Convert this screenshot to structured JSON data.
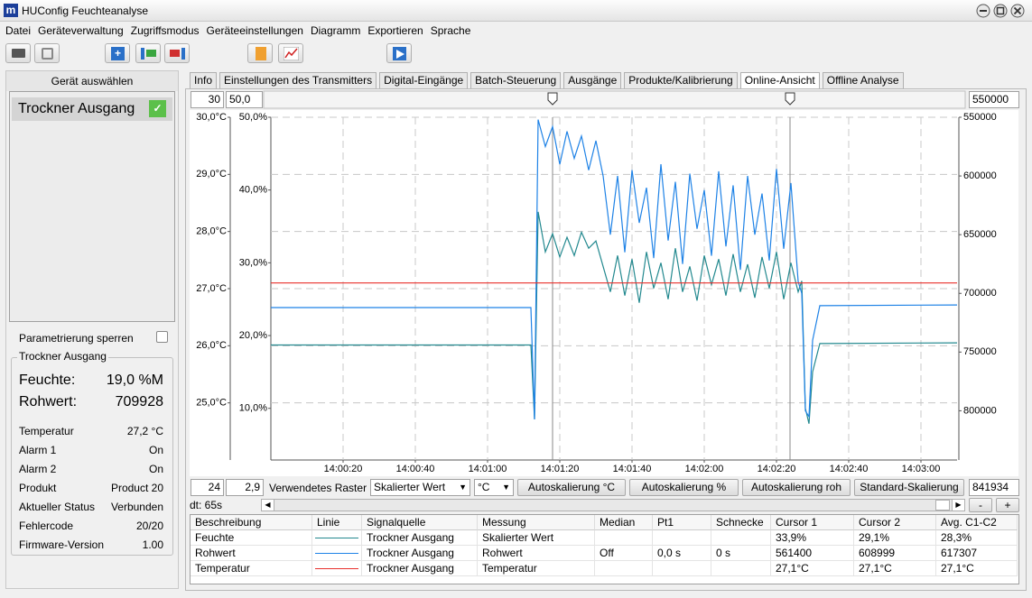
{
  "window": {
    "title": "HUConfig Feuchteanalyse"
  },
  "menu": [
    "Datei",
    "Geräteverwaltung",
    "Zugriffsmodus",
    "Geräteeinstellungen",
    "Diagramm",
    "Exportieren",
    "Sprache"
  ],
  "sidebar": {
    "header": "Gerät auswählen",
    "devices": [
      "Trockner Ausgang"
    ],
    "lock_label": "Parametrierung sperren",
    "group_title": "Trockner Ausgang",
    "readings": [
      {
        "label": "Feuchte:",
        "value": "19,0 %M"
      },
      {
        "label": "Rohwert:",
        "value": "709928"
      }
    ],
    "info": [
      [
        "Temperatur",
        "27,2 °C"
      ],
      [
        "Alarm 1",
        "On"
      ],
      [
        "Alarm 2",
        "On"
      ],
      [
        "Produkt",
        "Product 20"
      ],
      [
        "Aktueller Status",
        "Verbunden"
      ],
      [
        "Fehlercode",
        "20/20"
      ],
      [
        "Firmware-Version",
        "1.00"
      ]
    ]
  },
  "tabs": [
    "Info",
    "Einstellungen des Transmitters",
    "Digital-Eingänge",
    "Batch-Steuerung",
    "Ausgänge",
    "Produkte/Kalibrierung",
    "Online-Ansicht",
    "Offline Analyse"
  ],
  "active_tab": 6,
  "controls": {
    "temp_max": "30",
    "pct_max": "50,0",
    "raw_min": "550000",
    "temp_min": "24",
    "pct_min": "2,9",
    "raster_label": "Verwendetes Raster",
    "raster_value": "Skalierter Wert",
    "unit_value": "°C",
    "buttons": [
      "Autoskalierung °C",
      "Autoskalierung %",
      "Autoskalierung roh",
      "Standard-Skalierung"
    ],
    "raw_max": "841934",
    "dt": "dt: 65s",
    "zoom_out": "-",
    "zoom_in": "+"
  },
  "chart_data": {
    "type": "line",
    "xlim": [
      0,
      190
    ],
    "xticks": [
      {
        "value": 20,
        "label": "14:00:20"
      },
      {
        "value": 40,
        "label": "14:00:40"
      },
      {
        "value": 60,
        "label": "14:01:00"
      },
      {
        "value": 80,
        "label": "14:01:20"
      },
      {
        "value": 100,
        "label": "14:01:40"
      },
      {
        "value": 120,
        "label": "14:02:00"
      },
      {
        "value": 140,
        "label": "14:02:20"
      },
      {
        "value": 160,
        "label": "14:02:40"
      },
      {
        "value": 180,
        "label": "14:03:00"
      }
    ],
    "ylim": [
      24,
      30
    ],
    "yticks": [
      {
        "value": 30,
        "label": "30,0°C"
      },
      {
        "value": 29,
        "label": "29,0°C"
      },
      {
        "value": 28,
        "label": "28,0°C"
      },
      {
        "value": 27,
        "label": "27,0°C"
      },
      {
        "value": 26,
        "label": "26,0°C"
      },
      {
        "value": 25,
        "label": "25,0°C"
      }
    ],
    "y2lim": [
      2.9,
      50.0
    ],
    "y2ticks": [
      {
        "value": 50,
        "label": "50,0%"
      },
      {
        "value": 40,
        "label": "40,0%"
      },
      {
        "value": 30,
        "label": "30,0%"
      },
      {
        "value": 20,
        "label": "20,0%"
      },
      {
        "value": 10,
        "label": "10,0%"
      }
    ],
    "y3lim": [
      550000,
      841934
    ],
    "y3_inverted": true,
    "y3ticks": [
      550000,
      600000,
      650000,
      700000,
      750000,
      800000
    ],
    "grid": true,
    "cursors": [
      78,
      143.75
    ],
    "series": [
      {
        "color": "#23898f",
        "axis": "y2",
        "x": [
          0,
          72,
          73,
          74,
          76,
          78,
          80,
          82,
          84,
          86,
          88,
          90,
          92,
          94,
          96,
          98,
          100,
          102,
          104,
          106,
          108,
          110,
          112,
          114,
          116,
          118,
          120,
          122,
          124,
          126,
          128,
          130,
          132,
          134,
          136,
          138,
          140,
          142,
          144,
          146,
          147,
          148,
          149,
          150,
          152,
          190
        ],
        "values": [
          18.7,
          18.7,
          8.5,
          37.0,
          31.5,
          34.0,
          30.8,
          33.5,
          31.0,
          34.2,
          32.0,
          33.0,
          29.5,
          26.0,
          31.0,
          25.5,
          30.5,
          24.5,
          31.5,
          26.5,
          30.0,
          25.0,
          32.0,
          26.0,
          29.5,
          24.8,
          31.0,
          27.0,
          30.5,
          25.5,
          31.2,
          26.0,
          29.8,
          25.2,
          30.8,
          26.5,
          31.5,
          25.0,
          30.0,
          26.0,
          27.5,
          10.0,
          7.9,
          15.0,
          18.9,
          19.0
        ]
      },
      {
        "color": "#1e82e6",
        "axis": "y3",
        "x": [
          0,
          72,
          73,
          74,
          76,
          78,
          80,
          82,
          84,
          86,
          88,
          90,
          92,
          94,
          96,
          98,
          100,
          102,
          104,
          106,
          108,
          110,
          112,
          114,
          116,
          118,
          120,
          122,
          124,
          126,
          128,
          130,
          132,
          134,
          136,
          138,
          140,
          142,
          144,
          146,
          147,
          148,
          149,
          150,
          152,
          190
        ],
        "values": [
          712100,
          712100,
          807400,
          552000,
          575000,
          558000,
          590000,
          562000,
          585000,
          566000,
          595000,
          570000,
          600000,
          650000,
          600000,
          665000,
          595000,
          640000,
          610000,
          670000,
          590000,
          655000,
          605000,
          675000,
          598000,
          645000,
          612000,
          668000,
          596000,
          660000,
          608000,
          680000,
          600000,
          650000,
          615000,
          672000,
          594000,
          662000,
          606000,
          690000,
          700000,
          800000,
          805000,
          740000,
          710500,
          709900
        ]
      },
      {
        "color": "#e8302c",
        "axis": "y",
        "x": [
          0,
          190
        ],
        "values": [
          27.1,
          27.1
        ]
      }
    ]
  },
  "table": {
    "columns": [
      "Beschreibung",
      "Linie",
      "Signalquelle",
      "Messung",
      "Median",
      "Pt1",
      "Schnecke",
      "Cursor 1",
      "Cursor 2",
      "Avg. C1-C2"
    ],
    "rows": [
      [
        "Feuchte",
        "#23898f",
        "Trockner Ausgang",
        "Skalierter Wert",
        null,
        null,
        null,
        "33,9%",
        "29,1%",
        "28,3%"
      ],
      [
        "Rohwert",
        "#1e82e6",
        "Trockner Ausgang",
        "Rohwert",
        "Off",
        "0,0 s",
        "0 s",
        "561400",
        "608999",
        "617307"
      ],
      [
        "Temperatur",
        "#e8302c",
        "Trockner Ausgang",
        "Temperatur",
        null,
        null,
        null,
        "27,1°C",
        "27,1°C",
        "27,1°C"
      ]
    ]
  }
}
